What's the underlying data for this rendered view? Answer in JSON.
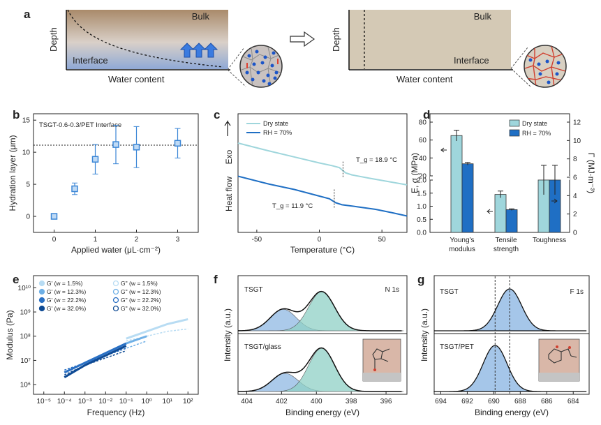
{
  "panels": {
    "a": {
      "label": "a",
      "left": {
        "bulk": "Bulk",
        "interface": "Interface",
        "ylabel": "Depth",
        "xlabel": "Water content"
      },
      "right": {
        "bulk": "Bulk",
        "interface": "Interface",
        "ylabel": "Depth",
        "xlabel": "Water content"
      }
    },
    "b": {
      "label": "b",
      "title": "TSGT-0.6-0.3/PET Interface",
      "xlabel": "Applied water (μL·cm⁻²)",
      "ylabel": "Hydration layer (μm)"
    },
    "c": {
      "label": "c",
      "xlabel": "Temperature (°C)",
      "ylabel": "Heat flow",
      "exo": "Exo",
      "ann_dry": "T_g = 18.9 °C",
      "ann_rh": "T_g = 11.9 °C"
    },
    "d": {
      "label": "d",
      "ylabel_left": "E, σ (MPa)",
      "ylabel_right": "Γ (MJ·m⁻³)"
    },
    "e": {
      "label": "e",
      "xlabel": "Frequency (Hz)",
      "ylabel": "Modulus (Pa)"
    },
    "f": {
      "label": "f",
      "xlabel": "Binding energy (eV)",
      "ylabel": "Intensity (a.u.)",
      "top_name": "TSGT",
      "bottom_name": "TSGT/glass",
      "line": "N 1s"
    },
    "g": {
      "label": "g",
      "xlabel": "Binding energy (eV)",
      "ylabel": "Intensity (a.u.)",
      "top_name": "TSGT",
      "bottom_name": "TSGT/PET",
      "line": "F 1s"
    }
  },
  "colors": {
    "light": "#9fd6dc",
    "dark": "#1f6fc4",
    "marker": "#3b86d6",
    "green": "#8fd0c6",
    "blue": "#8fb8e3"
  },
  "chart_data": [
    {
      "type": "scatter",
      "id": "b",
      "title": "TSGT-0.6-0.3/PET Interface",
      "xlabel": "Applied water (μL·cm⁻²)",
      "ylabel": "Hydration layer (μm)",
      "xlim": [
        -0.5,
        3.5
      ],
      "ylim": [
        -2.5,
        16
      ],
      "xticks": [
        "0",
        "1",
        "2",
        "3"
      ],
      "yticks": [
        "0",
        "5",
        "10",
        "15"
      ],
      "x": [
        0,
        0.5,
        1,
        1.5,
        2,
        3
      ],
      "y": [
        0,
        4.3,
        8.9,
        11.2,
        10.8,
        11.4
      ],
      "err": [
        0.3,
        0.9,
        2.3,
        3.0,
        3.2,
        2.3
      ],
      "hline": 11.1
    },
    {
      "type": "line",
      "id": "c",
      "xlabel": "Temperature (°C)",
      "ylabel": "Heat flow",
      "xlim": [
        -65,
        70
      ],
      "xticks": [
        "-50",
        "0",
        "50"
      ],
      "series": [
        {
          "name": "Dry state",
          "x": [
            -65,
            -40,
            -20,
            0,
            10,
            16,
            21,
            26,
            40,
            55,
            70
          ],
          "y": [
            1.0,
            0.88,
            0.79,
            0.7,
            0.66,
            0.63,
            0.55,
            0.52,
            0.47,
            0.42,
            0.37
          ]
        },
        {
          "name": "RH = 70%",
          "x": [
            -65,
            -40,
            -20,
            0,
            8,
            13,
            18,
            30,
            45,
            58,
            70
          ],
          "y": [
            0.5,
            0.38,
            0.3,
            0.2,
            0.16,
            0.1,
            0.07,
            0.04,
            0.0,
            -0.05,
            -0.1
          ]
        }
      ]
    },
    {
      "type": "bar",
      "id": "d",
      "categories": [
        "Young's\nmodulus",
        "Tensile\nstrength",
        "Toughness"
      ],
      "series": [
        {
          "name": "Dry state",
          "values": [
            65,
            1.45,
            5.7
          ],
          "err": [
            6,
            0.13,
            1.6
          ]
        },
        {
          "name": "RH = 70%",
          "values": [
            33.5,
            0.87,
            5.7
          ],
          "err": [
            1.5,
            0.03,
            1.6
          ]
        }
      ],
      "ylabel_left": "E, σ (MPa)",
      "ylabel_right": "Γ (MJ·m⁻³)",
      "left_upper_ticks": [
        "20",
        "40",
        "60",
        "80"
      ],
      "left_lower_ticks": [
        "0.0",
        "0.5",
        "1.0",
        "1.5",
        "2.0"
      ],
      "right_ticks": [
        "0",
        "2",
        "4",
        "6",
        "8",
        "10",
        "12"
      ]
    },
    {
      "type": "scatter",
      "id": "e",
      "xlabel": "Frequency (Hz)",
      "ylabel": "Modulus (Pa)",
      "scale": "log-log",
      "xticks": [
        "10⁻⁵",
        "10⁻⁴",
        "10⁻³",
        "10⁻²",
        "10⁻¹",
        "10⁰",
        "10¹",
        "10²"
      ],
      "yticks": [
        "10⁶",
        "10⁷",
        "10⁸",
        "10⁹",
        "10¹⁰"
      ],
      "series": [
        {
          "name": "G' (w = 1.5%)",
          "logx": [
            -1,
            0,
            1,
            2
          ],
          "logy": [
            7.9,
            8.2,
            8.5,
            8.7
          ]
        },
        {
          "name": "G\" (w = 1.5%)",
          "logx": [
            -1,
            0,
            1,
            2
          ],
          "logy": [
            7.8,
            8.0,
            8.2,
            8.3
          ]
        },
        {
          "name": "G' (w = 12.3%)",
          "logx": [
            -3,
            -2,
            -1,
            0
          ],
          "logy": [
            6.9,
            7.3,
            7.7,
            8.0
          ]
        },
        {
          "name": "G\" (w = 12.3%)",
          "logx": [
            -3,
            -2,
            -1,
            0
          ],
          "logy": [
            6.8,
            7.2,
            7.5,
            7.8
          ]
        },
        {
          "name": "G' (w = 22.2%)",
          "logx": [
            -4,
            -3,
            -2,
            -1
          ],
          "logy": [
            6.5,
            6.9,
            7.3,
            7.7
          ]
        },
        {
          "name": "G\" (w = 22.2%)",
          "logx": [
            -4,
            -3,
            -2,
            -1
          ],
          "logy": [
            6.6,
            6.9,
            7.2,
            7.5
          ]
        },
        {
          "name": "G' (w = 32.0%)",
          "logx": [
            -4,
            -3,
            -2,
            -1
          ],
          "logy": [
            6.3,
            6.8,
            7.2,
            7.6
          ]
        },
        {
          "name": "G\" (w = 32.0%)",
          "logx": [
            -4,
            -3,
            -2,
            -1
          ],
          "logy": [
            6.4,
            6.8,
            7.1,
            7.4
          ]
        }
      ]
    },
    {
      "type": "line",
      "id": "f",
      "xlabel": "Binding energy (eV)",
      "ylabel": "Intensity (a.u.)",
      "xticks": [
        "404",
        "402",
        "400",
        "398",
        "396"
      ],
      "peaks_top": [
        {
          "center": 401.9,
          "height": 0.55
        },
        {
          "center": 399.7,
          "height": 1.0
        }
      ],
      "peaks_bottom": [
        {
          "center": 401.8,
          "height": 0.42
        },
        {
          "center": 399.7,
          "height": 1.0
        }
      ]
    },
    {
      "type": "line",
      "id": "g",
      "xlabel": "Binding energy (eV)",
      "ylabel": "Intensity (a.u.)",
      "xticks": [
        "694",
        "692",
        "690",
        "688",
        "686",
        "684"
      ],
      "peak_top": 688.8,
      "peak_bottom": 689.9,
      "dashed_at": [
        689.9,
        688.8
      ]
    }
  ]
}
